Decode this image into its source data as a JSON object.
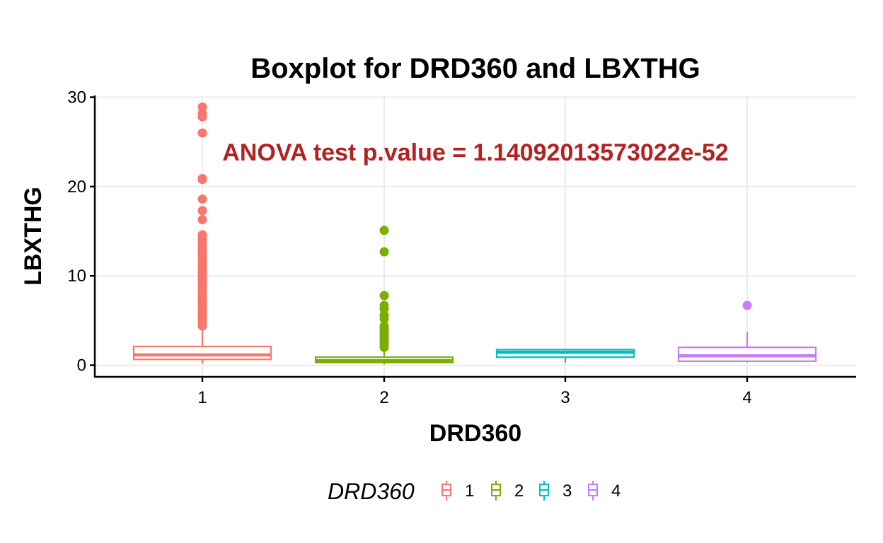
{
  "chart_data": {
    "type": "boxplot",
    "title": "Boxplot for DRD360 and LBXTHG",
    "xlabel": "DRD360",
    "ylabel": "LBXTHG",
    "categories": [
      "1",
      "2",
      "3",
      "4"
    ],
    "ylim": [
      -1.3,
      30.2
    ],
    "y_ticks": [
      0,
      10,
      20,
      30
    ],
    "grid": true,
    "annotation": {
      "text": "ANOVA test p.value = 1.14092013573022e-52",
      "color": "#B22222"
    },
    "legend": {
      "title": "DRD360",
      "position": "bottom",
      "labels": [
        "1",
        "2",
        "3",
        "4"
      ]
    },
    "series": [
      {
        "category": "1",
        "color": "#F8766D",
        "min": 0.2,
        "q1": 0.65,
        "median": 1.15,
        "q3": 2.1,
        "max": 4.2,
        "outliers": [
          28.9,
          28.2,
          27.8,
          26.0,
          20.9,
          20.8,
          18.6,
          17.3,
          16.3,
          14.6,
          14.2,
          13.8,
          13.5,
          13.1,
          12.8,
          12.5,
          12.2,
          11.9,
          11.6,
          11.3,
          11.0,
          10.7,
          10.4,
          10.1,
          9.8,
          9.5,
          9.2,
          8.9,
          8.6,
          8.3,
          8.0,
          7.7,
          7.4,
          7.1,
          6.8,
          6.5,
          6.2,
          5.9,
          5.6,
          5.3,
          5.0,
          4.7,
          4.4
        ]
      },
      {
        "category": "2",
        "color": "#7CAE00",
        "min": 0.1,
        "q1": 0.3,
        "median": 0.5,
        "q3": 0.9,
        "max": 1.9,
        "outliers": [
          15.1,
          12.7,
          7.8,
          6.7,
          6.3,
          5.6,
          5.2,
          4.4,
          4.1,
          3.8,
          3.5,
          3.2,
          2.9,
          2.6,
          2.3,
          2.0
        ]
      },
      {
        "category": "3",
        "color": "#00BFC4",
        "min": 0.3,
        "q1": 0.9,
        "median": 1.45,
        "q3": 1.75,
        "max": 1.75,
        "outliers": []
      },
      {
        "category": "4",
        "color": "#C77CFF",
        "min": 0.3,
        "q1": 0.45,
        "median": 1.05,
        "q3": 2.0,
        "max": 3.7,
        "outliers": [
          6.7
        ]
      }
    ]
  }
}
